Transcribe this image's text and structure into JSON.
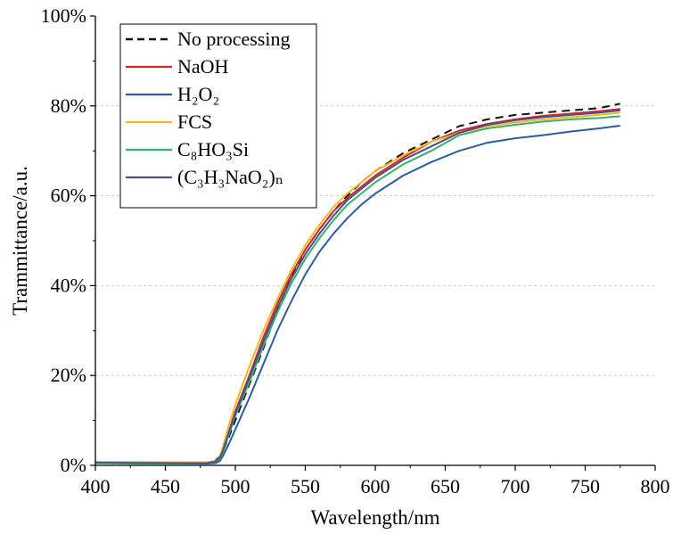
{
  "chart_data": {
    "type": "line",
    "xlabel": "Wavelength/nm",
    "ylabel": "Trammittance/a.u.",
    "xlim": [
      400,
      800
    ],
    "ylim": [
      0,
      100
    ],
    "x_ticks": [
      400,
      450,
      500,
      550,
      600,
      650,
      700,
      750,
      800
    ],
    "y_ticks": [
      0,
      20,
      40,
      60,
      80,
      100
    ],
    "y_tick_labels": [
      "0%",
      "20%",
      "40%",
      "60%",
      "80%",
      "100%"
    ],
    "grid": "horizontal dashed",
    "legend_position": "top-left",
    "series": [
      {
        "name": "No processing",
        "color": "#111111",
        "dashed": true,
        "x": [
          400,
          460,
          480,
          486,
          489,
          491,
          495,
          500,
          510,
          520,
          530,
          540,
          550,
          560,
          570,
          580,
          590,
          600,
          620,
          640,
          660,
          680,
          700,
          720,
          740,
          760,
          775
        ],
        "y": [
          0.5,
          0.5,
          0.6,
          1.2,
          2.0,
          3.0,
          6.0,
          10.0,
          18.0,
          26.0,
          34.5,
          42.0,
          48.0,
          52.5,
          56.5,
          60.0,
          63.0,
          65.5,
          69.5,
          72.5,
          75.5,
          77.0,
          78.0,
          78.5,
          79.0,
          79.5,
          80.5
        ]
      },
      {
        "name": "NaOH",
        "color": "#d62728",
        "dashed": false,
        "x": [
          400,
          460,
          480,
          486,
          489,
          491,
          495,
          500,
          510,
          520,
          530,
          540,
          550,
          560,
          570,
          580,
          590,
          600,
          620,
          640,
          660,
          680,
          700,
          720,
          740,
          760,
          775
        ],
        "y": [
          0.7,
          0.6,
          0.6,
          0.9,
          1.5,
          3.0,
          7.0,
          12.0,
          20.0,
          28.5,
          36.0,
          42.5,
          48.0,
          52.5,
          56.5,
          59.5,
          62.0,
          64.5,
          68.5,
          72.0,
          74.5,
          76.0,
          77.0,
          77.8,
          78.3,
          78.8,
          79.3
        ]
      },
      {
        "name": "H₂O₂",
        "color": "#2a5d9f",
        "dashed": false,
        "x": [
          400,
          460,
          480,
          486,
          489,
          491,
          495,
          500,
          510,
          520,
          530,
          540,
          550,
          560,
          570,
          580,
          590,
          600,
          620,
          640,
          660,
          680,
          700,
          720,
          740,
          760,
          775
        ],
        "y": [
          0.5,
          0.4,
          0.4,
          0.5,
          1.0,
          2.0,
          4.5,
          8.0,
          15.0,
          22.5,
          30.0,
          36.5,
          42.5,
          47.5,
          51.5,
          55.0,
          58.0,
          60.5,
          64.5,
          67.5,
          70.0,
          71.8,
          72.8,
          73.5,
          74.3,
          75.0,
          75.6
        ]
      },
      {
        "name": "FCS",
        "color": "#f2b820",
        "dashed": false,
        "x": [
          400,
          460,
          480,
          486,
          489,
          491,
          495,
          500,
          510,
          520,
          530,
          540,
          550,
          560,
          570,
          580,
          590,
          600,
          620,
          640,
          660,
          680,
          700,
          720,
          740,
          760,
          775
        ],
        "y": [
          0.8,
          0.7,
          0.7,
          1.0,
          2.0,
          4.0,
          8.5,
          13.5,
          22.0,
          30.0,
          37.0,
          43.5,
          49.0,
          53.5,
          57.5,
          60.5,
          63.0,
          65.5,
          69.0,
          72.0,
          74.0,
          75.5,
          76.3,
          77.0,
          77.5,
          78.0,
          78.5
        ]
      },
      {
        "name": "C₈HO₃Si",
        "color": "#3bb06a",
        "dashed": false,
        "x": [
          400,
          460,
          480,
          486,
          489,
          491,
          495,
          500,
          510,
          520,
          530,
          540,
          550,
          560,
          570,
          580,
          590,
          600,
          620,
          640,
          660,
          680,
          700,
          720,
          740,
          760,
          775
        ],
        "y": [
          0.5,
          0.4,
          0.5,
          0.8,
          1.5,
          2.8,
          6.5,
          11.0,
          18.5,
          26.5,
          34.0,
          40.5,
          46.0,
          50.5,
          54.5,
          58.0,
          60.5,
          63.0,
          67.0,
          70.0,
          73.5,
          75.0,
          75.8,
          76.5,
          77.0,
          77.3,
          77.7
        ]
      },
      {
        "name": "(C₃H₃NaO₂)ₙ",
        "color": "#4a4f8c",
        "dashed": false,
        "x": [
          400,
          460,
          480,
          486,
          489,
          491,
          495,
          500,
          510,
          520,
          530,
          540,
          550,
          560,
          570,
          580,
          590,
          600,
          620,
          640,
          660,
          680,
          700,
          720,
          740,
          760,
          775
        ],
        "y": [
          0.6,
          0.5,
          0.5,
          0.9,
          1.8,
          3.2,
          7.0,
          11.5,
          19.5,
          27.5,
          35.0,
          41.5,
          47.0,
          51.5,
          55.5,
          59.0,
          61.5,
          64.0,
          68.0,
          71.0,
          74.0,
          75.8,
          76.8,
          77.5,
          78.0,
          78.5,
          79.0
        ]
      }
    ]
  }
}
